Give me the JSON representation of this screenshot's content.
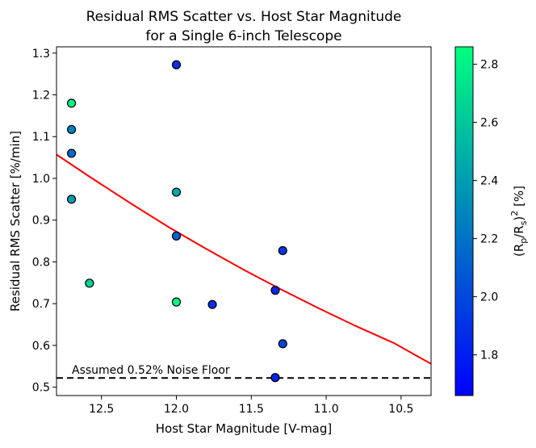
{
  "chart_data": {
    "type": "scatter",
    "title_line1": "Residual RMS Scatter vs. Host Star Magnitude",
    "title_line2": "for a Single 6-inch Telescope",
    "xlabel": "Host Star Magnitude [V-mag]",
    "ylabel": "Residual RMS Scatter [%/min]",
    "xlim": [
      12.8,
      10.3
    ],
    "ylim": [
      0.48,
      1.315
    ],
    "x_ticks": [
      12.5,
      12.0,
      11.5,
      11.0,
      10.5
    ],
    "x_tick_labels": [
      "12.5",
      "12.0",
      "11.5",
      "11.0",
      "10.5"
    ],
    "y_ticks": [
      0.5,
      0.6,
      0.7,
      0.8,
      0.9,
      1.0,
      1.1,
      1.2,
      1.3
    ],
    "y_tick_labels": [
      "0.5",
      "0.6",
      "0.7",
      "0.8",
      "0.9",
      "1.0",
      "1.1",
      "1.2",
      "1.3"
    ],
    "points": [
      {
        "x": 12.7,
        "y": 1.18,
        "c": 2.8
      },
      {
        "x": 12.7,
        "y": 1.117,
        "c": 2.28
      },
      {
        "x": 12.7,
        "y": 1.06,
        "c": 2.15
      },
      {
        "x": 12.7,
        "y": 0.95,
        "c": 2.4
      },
      {
        "x": 12.58,
        "y": 0.749,
        "c": 2.65
      },
      {
        "x": 12.0,
        "y": 1.272,
        "c": 1.9
      },
      {
        "x": 12.0,
        "y": 0.967,
        "c": 2.45
      },
      {
        "x": 12.0,
        "y": 0.862,
        "c": 2.12
      },
      {
        "x": 12.0,
        "y": 0.704,
        "c": 2.85
      },
      {
        "x": 11.76,
        "y": 0.698,
        "c": 1.88
      },
      {
        "x": 11.34,
        "y": 0.732,
        "c": 1.85
      },
      {
        "x": 11.29,
        "y": 0.827,
        "c": 1.92
      },
      {
        "x": 11.29,
        "y": 0.604,
        "c": 1.97
      },
      {
        "x": 11.34,
        "y": 0.523,
        "c": 1.82
      }
    ],
    "fit_curve": {
      "x": [
        12.8,
        12.55,
        12.3,
        12.05,
        11.8,
        11.55,
        11.3,
        11.05,
        10.8,
        10.55,
        10.3
      ],
      "y": [
        1.057,
        0.997,
        0.939,
        0.883,
        0.831,
        0.781,
        0.734,
        0.689,
        0.646,
        0.606,
        0.556
      ],
      "color": "#ff0000"
    },
    "noise_floor": {
      "y": 0.522,
      "label": "Assumed 0.52% Noise Floor"
    },
    "colorbar": {
      "label_main": "(R",
      "label_sub1": "p",
      "label_mid": "/R",
      "label_sub2": "s",
      "label_tail": ")",
      "label_sup": "2",
      "label_unit": " [%]",
      "range": [
        1.66,
        2.86
      ],
      "ticks": [
        1.8,
        2.0,
        2.2,
        2.4,
        2.6,
        2.8
      ],
      "tick_labels": [
        "1.8",
        "2.0",
        "2.2",
        "2.4",
        "2.6",
        "2.8"
      ],
      "colormap": "winter",
      "color_low": "#0000ff",
      "color_high": "#00ff80"
    }
  }
}
